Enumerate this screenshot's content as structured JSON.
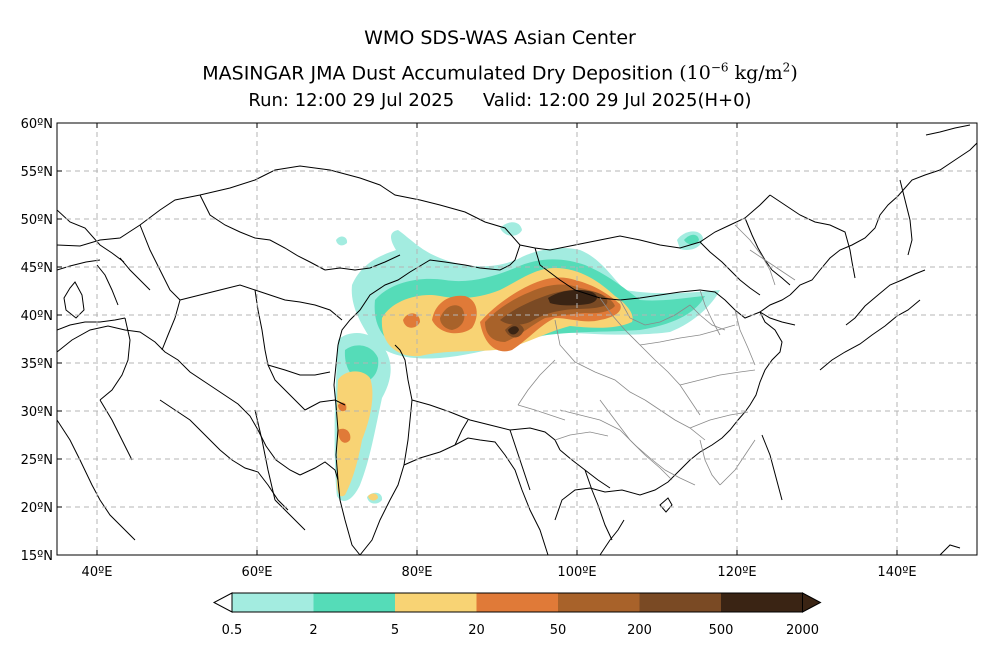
{
  "header": {
    "org": "WMO SDS-WAS Asian Center",
    "product": "MASINGAR JMA Dust Accumulated Dry Deposition",
    "unit_open": "(10",
    "unit_exp": "−6",
    "unit_mid": " kg/m",
    "unit_exp2": "2",
    "unit_close": ")",
    "run": "Run: 12:00 29 Jul 2025",
    "valid": "Valid: 12:00 29 Jul 2025(H+0)"
  },
  "map": {
    "extent": {
      "lon": [
        35,
        150
      ],
      "lat": [
        15,
        60
      ]
    },
    "lat_ticks": [
      {
        "value": 60,
        "label": "60ºN"
      },
      {
        "value": 55,
        "label": "55ºN"
      },
      {
        "value": 50,
        "label": "50ºN"
      },
      {
        "value": 45,
        "label": "45ºN"
      },
      {
        "value": 40,
        "label": "40ºN"
      },
      {
        "value": 35,
        "label": "35ºN"
      },
      {
        "value": 30,
        "label": "30ºN"
      },
      {
        "value": 25,
        "label": "25ºN"
      },
      {
        "value": 20,
        "label": "20ºN"
      },
      {
        "value": 15,
        "label": "15ºN"
      }
    ],
    "lon_ticks": [
      {
        "value": 40,
        "label": "40ºE"
      },
      {
        "value": 60,
        "label": "60ºE"
      },
      {
        "value": 80,
        "label": "80ºE"
      },
      {
        "value": 100,
        "label": "100ºE"
      },
      {
        "value": 120,
        "label": "120ºE"
      },
      {
        "value": 140,
        "label": "140ºE"
      }
    ],
    "grid": true
  },
  "legend": {
    "colors": [
      "#ffffff",
      "#a3ece0",
      "#55dcb8",
      "#f8d374",
      "#e07a38",
      "#a8622a",
      "#7a4a24",
      "#3a2414"
    ],
    "labels": [
      "0.5",
      "2",
      "5",
      "20",
      "50",
      "200",
      "500",
      "2000"
    ]
  },
  "deposition_levels": [
    {
      "level": "0.5-2",
      "color": "#a3ece0"
    },
    {
      "level": "2-5",
      "color": "#55dcb8"
    },
    {
      "level": "5-20",
      "color": "#f8d374"
    },
    {
      "level": "20-50",
      "color": "#e07a38"
    },
    {
      "level": "50-200",
      "color": "#a8622a"
    },
    {
      "level": "200-500",
      "color": "#7a4a24"
    },
    {
      "level": "500-2000",
      "color": "#3a2414"
    }
  ]
}
